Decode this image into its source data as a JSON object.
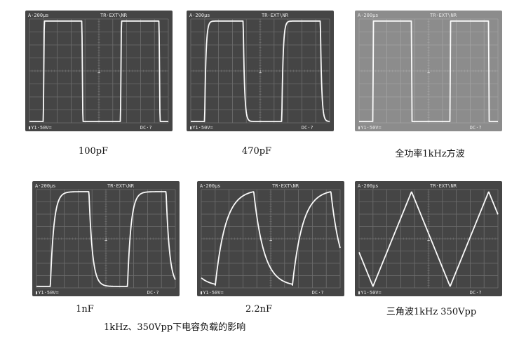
{
  "colors": {
    "screen_dark": "#454545",
    "screen_faded": "#8c8c8c",
    "grid": "#6e6e6e",
    "trace": "#fafafa"
  },
  "panels": [
    {
      "id": "100pf",
      "caption": "100pF",
      "timebase": "A·200μs",
      "trigger": "TR·EXT\\NR",
      "channel": "▮Y1·50V=",
      "coupling": "DC·?",
      "waveform": "square-fast-edge",
      "faded": false
    },
    {
      "id": "470pf",
      "caption": "470pF",
      "timebase": "A·200μs",
      "trigger": "TR·EXT\\NR",
      "channel": "▮Y1·50V=",
      "coupling": "DC·?",
      "waveform": "square-slight-rounding",
      "faded": false
    },
    {
      "id": "full-power",
      "caption": "全功率1kHz方波",
      "timebase": "A·200μs",
      "trigger": "TR·EXT\\NR",
      "channel": "▮Y1·50V=",
      "coupling": "DC·?",
      "waveform": "square-ideal",
      "faded": true
    },
    {
      "id": "1nf",
      "caption": "1nF",
      "timebase": "A·200μs",
      "trigger": "TR·EXT\\NR",
      "channel": "▮Y1·50V=",
      "coupling": "DC·?",
      "waveform": "square-rounded",
      "faded": false
    },
    {
      "id": "2-2nf",
      "caption": "2.2nF",
      "timebase": "A·200μs",
      "trigger": "TR·EXT\\NR",
      "channel": "▮Y1·50V=",
      "coupling": "DC·?",
      "waveform": "exponential-shark-fin",
      "faded": false
    },
    {
      "id": "triangle",
      "caption": "三角波1kHz 350Vpp",
      "timebase": "A·200μs",
      "trigger": "TR·EXT\\NR",
      "channel": "▮Y1·50V=",
      "coupling": "DC·?",
      "waveform": "triangle",
      "faded": false
    }
  ],
  "main_caption": "1kHz、350Vpp下电容负载的影响"
}
